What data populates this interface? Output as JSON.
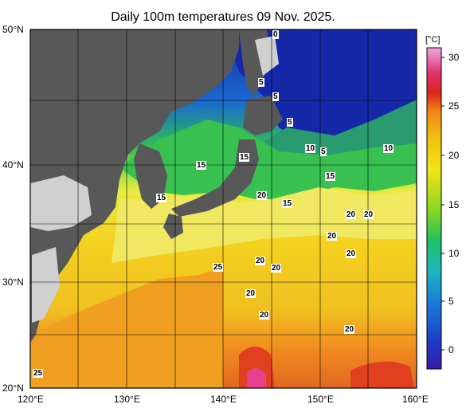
{
  "title": "Daily 100m temperatures 09 Nov. 2025.",
  "unit_label": "[°C]",
  "lat_labels": [
    "50°N",
    "40°N",
    "30°N",
    "20°N"
  ],
  "lon_labels": [
    "120°E",
    "130°E",
    "140°E",
    "150°E",
    "160°E"
  ],
  "colorbar": {
    "min": -2,
    "max": 31,
    "ticks": [
      "0",
      "5",
      "10",
      "15",
      "20",
      "25",
      "30"
    ],
    "colors": [
      "#3a1aa8",
      "#1e3ac8",
      "#1a78d8",
      "#20b4c0",
      "#20c060",
      "#70d020",
      "#d8e818",
      "#f0c010",
      "#f09018",
      "#e05020",
      "#d81818",
      "#e8409c",
      "#f0a0d8"
    ]
  },
  "isotherm_labels": [
    "0",
    "5",
    "5",
    "5",
    "10",
    "5",
    "10",
    "15",
    "15",
    "15",
    "15",
    "15",
    "20",
    "20",
    "20",
    "20",
    "20",
    "25",
    "20",
    "20",
    "20",
    "20",
    "20",
    "25"
  ],
  "colors": {
    "land": "#585858",
    "lake_land": "#d0d0d0",
    "grid": "#000000"
  }
}
